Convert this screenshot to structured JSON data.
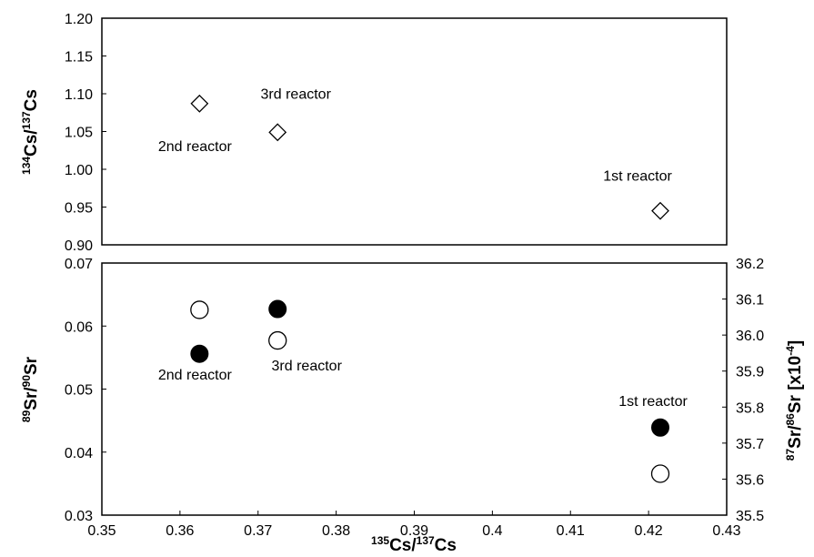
{
  "chart_data": [
    {
      "type": "scatter",
      "panel": "top",
      "xlabel": {
        "sup1": "135",
        "base1": "Cs/",
        "sup2": "137",
        "base2": "Cs"
      },
      "ylabel": {
        "sup1": "134",
        "base1": "Cs/",
        "sup2": "137",
        "base2": "Cs"
      },
      "xlim": [
        0.35,
        0.43
      ],
      "ylim": [
        0.9,
        1.2
      ],
      "y_ticks": [
        "0.90",
        "0.95",
        "1.00",
        "1.05",
        "1.10",
        "1.15",
        "1.20"
      ],
      "series": [
        {
          "marker": "open-diamond",
          "points": [
            {
              "x": 0.3625,
              "y": 1.087,
              "label": "2nd reactor"
            },
            {
              "x": 0.3725,
              "y": 1.049,
              "label": "3rd reactor"
            },
            {
              "x": 0.4215,
              "y": 0.945,
              "label": "1st reactor"
            }
          ]
        }
      ]
    },
    {
      "type": "scatter",
      "panel": "bottom",
      "xlabel": {
        "sup1": "135",
        "base1": "Cs/",
        "sup2": "137",
        "base2": "Cs"
      },
      "ylabel_left": {
        "sup1": "89",
        "base1": "Sr/",
        "sup2": "90",
        "base2": "Sr"
      },
      "ylabel_right": {
        "sup1": "87",
        "base1": "Sr/",
        "sup2": "86",
        "base2": "Sr [x10",
        "sup3": "-4",
        "base3": "]"
      },
      "xlim": [
        0.35,
        0.43
      ],
      "x_ticks": [
        "0.35",
        "0.36",
        "0.37",
        "0.38",
        "0.39",
        "0.4",
        "0.41",
        "0.42",
        "0.43"
      ],
      "ylim_left": [
        0.03,
        0.07
      ],
      "y_ticks_left": [
        "0.03",
        "0.04",
        "0.05",
        "0.06",
        "0.07"
      ],
      "ylim_right": [
        35.5,
        36.2
      ],
      "y_ticks_right": [
        "35.5",
        "35.6",
        "35.7",
        "35.8",
        "35.9",
        "36.0",
        "36.1",
        "36.2"
      ],
      "series": [
        {
          "marker": "filled-circle",
          "axis": "left",
          "points": [
            {
              "x": 0.3625,
              "y": 0.0556
            },
            {
              "x": 0.3725,
              "y": 0.0627
            },
            {
              "x": 0.4215,
              "y": 0.0439
            }
          ]
        },
        {
          "marker": "open-circle",
          "axis": "right",
          "points": [
            {
              "x": 0.3625,
              "y": 36.07
            },
            {
              "x": 0.3725,
              "y": 35.985
            },
            {
              "x": 0.4215,
              "y": 35.615
            }
          ]
        }
      ],
      "annotations": [
        {
          "x": 0.3625,
          "text": "2nd reactor"
        },
        {
          "x": 0.3725,
          "text": "3rd reactor"
        },
        {
          "x": 0.4215,
          "text": "1st reactor"
        }
      ]
    }
  ]
}
